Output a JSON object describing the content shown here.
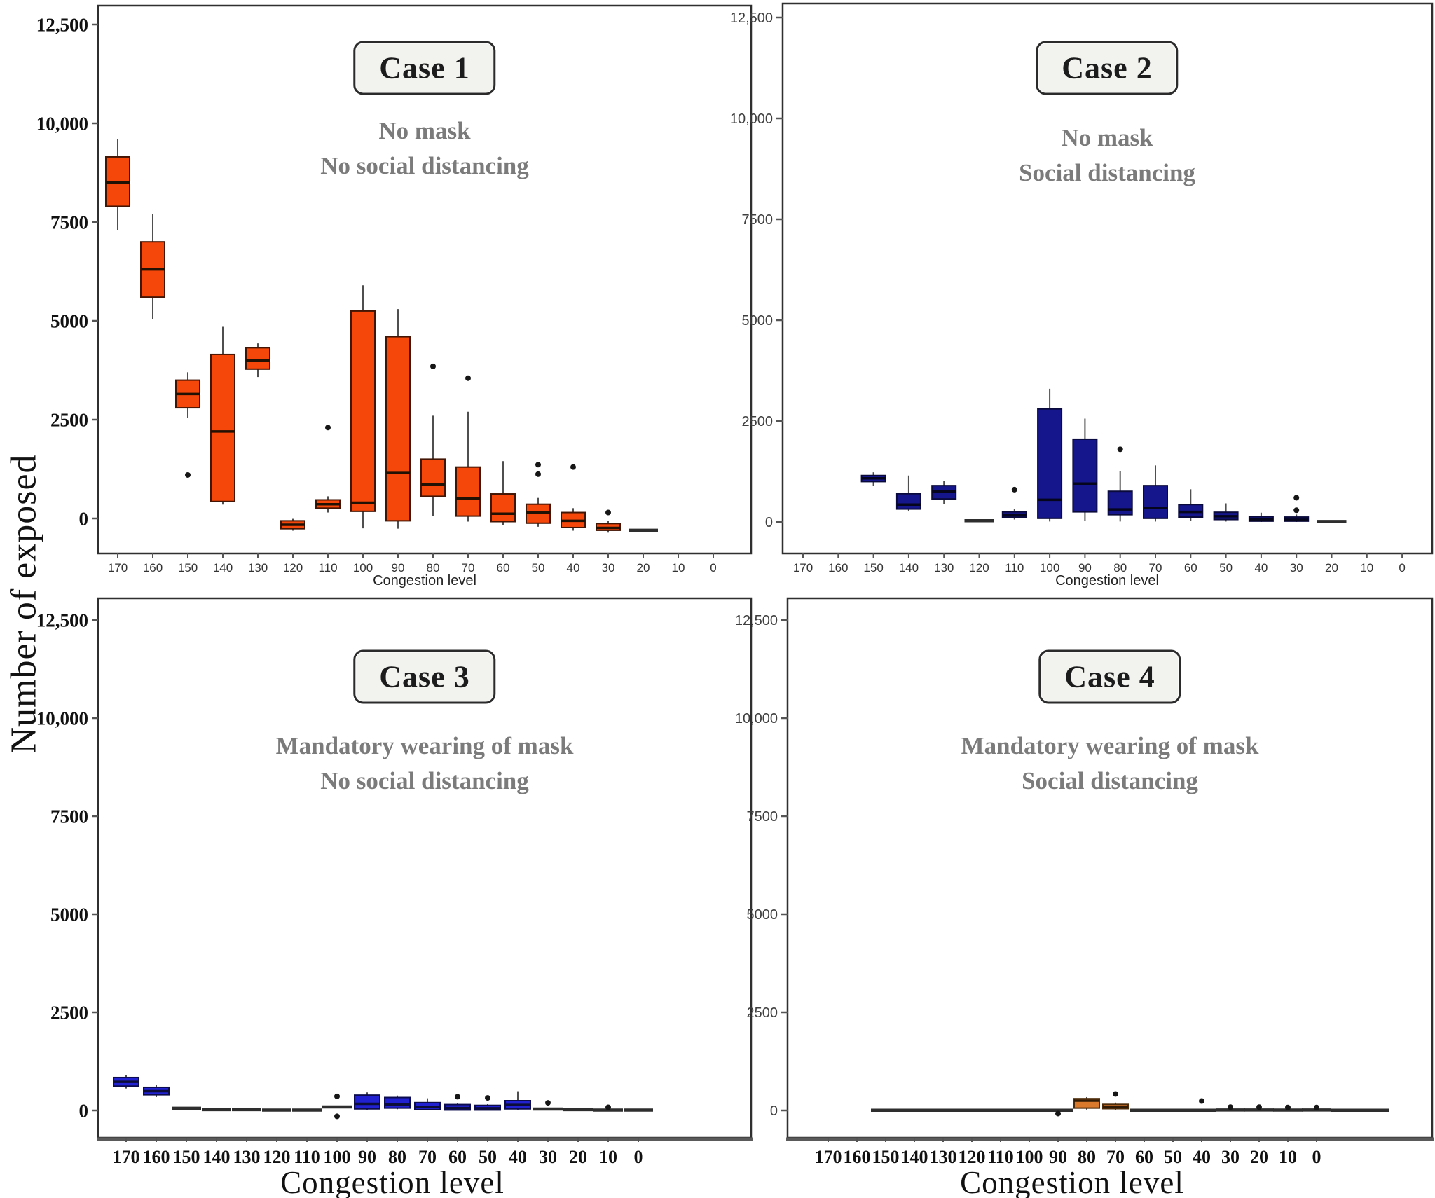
{
  "figure": {
    "y_axis_label": "Number of exposed",
    "background": "#ffffff"
  },
  "chart_data": [
    {
      "type": "boxplot",
      "case_label": "Case 1",
      "subtitle_lines": [
        "No mask",
        "No social distancing"
      ],
      "xlabel": "Congestion level",
      "box_fill": "#F5470A",
      "box_stroke": "#431504",
      "median_color": "#211004",
      "legend_position": "none",
      "grid": false,
      "ylim": [
        -900,
        12500
      ],
      "yticks": [
        {
          "v": 0,
          "label": "0"
        },
        {
          "v": 2500,
          "label": "2500"
        },
        {
          "v": 5000,
          "label": "5000"
        },
        {
          "v": 7500,
          "label": "7500"
        },
        {
          "v": 10000,
          "label": "10,000"
        },
        {
          "v": 12500,
          "label": "12,500"
        }
      ],
      "categories": [
        "170",
        "160",
        "150",
        "140",
        "130",
        "120",
        "110",
        "100",
        "90",
        "80",
        "70",
        "60",
        "50",
        "40",
        "30",
        "20",
        "10",
        "0"
      ],
      "boxes": [
        {
          "cat": "170",
          "low": 7300,
          "q1": 7900,
          "med": 8500,
          "q3": 9150,
          "high": 9600,
          "out": []
        },
        {
          "cat": "160",
          "low": 5050,
          "q1": 5600,
          "med": 6300,
          "q3": 7000,
          "high": 7700,
          "out": []
        },
        {
          "cat": "150",
          "low": 2550,
          "q1": 2800,
          "med": 3150,
          "q3": 3500,
          "high": 3700,
          "out": [
            1100
          ]
        },
        {
          "cat": "140",
          "low": 350,
          "q1": 430,
          "med": 2200,
          "q3": 4150,
          "high": 4850,
          "out": []
        },
        {
          "cat": "130",
          "low": 3580,
          "q1": 3780,
          "med": 4000,
          "q3": 4320,
          "high": 4430,
          "out": []
        },
        {
          "cat": "120",
          "low": -310,
          "q1": -260,
          "med": -160,
          "q3": -60,
          "high": -10,
          "out": []
        },
        {
          "cat": "110",
          "low": 150,
          "q1": 260,
          "med": 360,
          "q3": 470,
          "high": 560,
          "out": [
            2300
          ]
        },
        {
          "cat": "100",
          "low": -250,
          "q1": 180,
          "med": 400,
          "q3": 5250,
          "high": 5900,
          "out": []
        },
        {
          "cat": "90",
          "low": -260,
          "q1": -60,
          "med": 1150,
          "q3": 4600,
          "high": 5300,
          "out": []
        },
        {
          "cat": "80",
          "low": 60,
          "q1": 560,
          "med": 860,
          "q3": 1500,
          "high": 2600,
          "out": [
            3850
          ]
        },
        {
          "cat": "70",
          "low": -80,
          "q1": 60,
          "med": 500,
          "q3": 1300,
          "high": 2700,
          "out": [
            3550
          ]
        },
        {
          "cat": "60",
          "low": -160,
          "q1": -80,
          "med": 120,
          "q3": 620,
          "high": 1450,
          "out": []
        },
        {
          "cat": "50",
          "low": -210,
          "q1": -120,
          "med": 150,
          "q3": 360,
          "high": 520,
          "out": [
            1120,
            1360
          ]
        },
        {
          "cat": "40",
          "low": -310,
          "q1": -230,
          "med": -60,
          "q3": 150,
          "high": 260,
          "out": [
            1300
          ]
        },
        {
          "cat": "30",
          "low": -360,
          "q1": -300,
          "med": -240,
          "q3": -130,
          "high": -60,
          "out": [
            150
          ]
        },
        {
          "cat": "20",
          "flat": -300,
          "out": []
        },
        null,
        null
      ]
    },
    {
      "type": "boxplot",
      "case_label": "Case 2",
      "subtitle_lines": [
        "No mask",
        "Social distancing"
      ],
      "xlabel": "Congestion level",
      "box_fill": "#16168C",
      "box_stroke": "#0a0a3c",
      "median_color": "#05051e",
      "legend_position": "none",
      "grid": false,
      "ylim": [
        -900,
        12500
      ],
      "yticks": [
        {
          "v": 0,
          "label": "0"
        },
        {
          "v": 2500,
          "label": "2500"
        },
        {
          "v": 5000,
          "label": "5000"
        },
        {
          "v": 7500,
          "label": "7500"
        },
        {
          "v": 10000,
          "label": "10,000"
        },
        {
          "v": 12500,
          "label": "12,500"
        }
      ],
      "categories": [
        "170",
        "160",
        "150",
        "140",
        "130",
        "120",
        "110",
        "100",
        "90",
        "80",
        "70",
        "60",
        "50",
        "40",
        "30",
        "20",
        "10",
        "0"
      ],
      "boxes": [
        null,
        null,
        {
          "cat": "150",
          "low": 900,
          "q1": 1000,
          "med": 1080,
          "q3": 1150,
          "high": 1230,
          "out": []
        },
        {
          "cat": "140",
          "low": 260,
          "q1": 320,
          "med": 430,
          "q3": 700,
          "high": 1150,
          "out": []
        },
        {
          "cat": "130",
          "low": 450,
          "q1": 570,
          "med": 760,
          "q3": 900,
          "high": 1010,
          "out": []
        },
        {
          "cat": "120",
          "flat": 30,
          "out": []
        },
        {
          "cat": "110",
          "low": 60,
          "q1": 120,
          "med": 180,
          "q3": 250,
          "high": 320,
          "out": [
            800
          ]
        },
        {
          "cat": "100",
          "low": 10,
          "q1": 90,
          "med": 550,
          "q3": 2800,
          "high": 3300,
          "out": []
        },
        {
          "cat": "90",
          "low": 30,
          "q1": 250,
          "med": 950,
          "q3": 2050,
          "high": 2560,
          "out": []
        },
        {
          "cat": "80",
          "low": 10,
          "q1": 180,
          "med": 310,
          "q3": 760,
          "high": 1260,
          "out": [
            1800
          ]
        },
        {
          "cat": "70",
          "low": 10,
          "q1": 90,
          "med": 350,
          "q3": 900,
          "high": 1400,
          "out": []
        },
        {
          "cat": "60",
          "low": 20,
          "q1": 120,
          "med": 250,
          "q3": 430,
          "high": 810,
          "out": []
        },
        {
          "cat": "50",
          "low": 10,
          "q1": 60,
          "med": 140,
          "q3": 240,
          "high": 460,
          "out": []
        },
        {
          "cat": "40",
          "low": 0,
          "q1": 20,
          "med": 60,
          "q3": 130,
          "high": 230,
          "out": []
        },
        {
          "cat": "30",
          "low": 0,
          "q1": 20,
          "med": 55,
          "q3": 120,
          "high": 185,
          "out": [
            290,
            600
          ]
        },
        {
          "cat": "20",
          "flat": 10,
          "out": []
        },
        null,
        null
      ]
    },
    {
      "type": "boxplot",
      "case_label": "Case 3",
      "subtitle_lines": [
        "Mandatory wearing of mask",
        "No social distancing"
      ],
      "xlabel": "Congestion level",
      "box_fill": "#2121D1",
      "box_stroke": "#0c0c4f",
      "median_color": "#0d0d3a",
      "legend_position": "none",
      "grid": false,
      "ylim": [
        -900,
        12500
      ],
      "yticks": [
        {
          "v": 0,
          "label": "0"
        },
        {
          "v": 2500,
          "label": "2500"
        },
        {
          "v": 5000,
          "label": "5000"
        },
        {
          "v": 7500,
          "label": "7500"
        },
        {
          "v": 10000,
          "label": "10,000"
        },
        {
          "v": 12500,
          "label": "12,500"
        }
      ],
      "categories": [
        "170",
        "160",
        "150",
        "140",
        "130",
        "120",
        "110",
        "100",
        "90",
        "80",
        "70",
        "60",
        "50",
        "40",
        "30",
        "20",
        "10",
        "0"
      ],
      "boxes": [
        {
          "cat": "170",
          "low": 560,
          "q1": 620,
          "med": 730,
          "q3": 840,
          "high": 900,
          "out": []
        },
        {
          "cat": "160",
          "low": 340,
          "q1": 400,
          "med": 490,
          "q3": 590,
          "high": 660,
          "out": []
        },
        {
          "cat": "150",
          "flat": 55,
          "out": []
        },
        {
          "cat": "140",
          "flat": 20,
          "out": []
        },
        {
          "cat": "130",
          "flat": 20,
          "out": []
        },
        {
          "cat": "120",
          "flat": 8,
          "out": []
        },
        {
          "cat": "110",
          "flat": 8,
          "out": []
        },
        {
          "cat": "100",
          "flat": 90,
          "out": [
            360,
            -150
          ]
        },
        {
          "cat": "90",
          "low": 10,
          "q1": 40,
          "med": 170,
          "q3": 390,
          "high": 460,
          "out": []
        },
        {
          "cat": "80",
          "low": 30,
          "q1": 60,
          "med": 150,
          "q3": 330,
          "high": 380,
          "out": []
        },
        {
          "cat": "70",
          "low": 5,
          "q1": 20,
          "med": 90,
          "q3": 200,
          "high": 310,
          "out": []
        },
        {
          "cat": "60",
          "low": 0,
          "q1": 10,
          "med": 60,
          "q3": 150,
          "high": 190,
          "out": [
            350
          ]
        },
        {
          "cat": "50",
          "low": 0,
          "q1": 10,
          "med": 55,
          "q3": 130,
          "high": 160,
          "out": [
            320
          ]
        },
        {
          "cat": "40",
          "low": 10,
          "q1": 40,
          "med": 140,
          "q3": 250,
          "high": 490,
          "out": []
        },
        {
          "cat": "30",
          "flat": 35,
          "out": [
            195
          ]
        },
        {
          "cat": "20",
          "flat": 20,
          "out": []
        },
        {
          "cat": "10",
          "flat": 8,
          "out": [
            80
          ]
        },
        {
          "cat": "0",
          "flat": 10,
          "out": []
        }
      ]
    },
    {
      "type": "boxplot",
      "case_label": "Case 4",
      "subtitle_lines": [
        "Mandatory wearing of mask",
        "Social distancing"
      ],
      "xlabel": "Congestion level",
      "box_fill": "#D8792B",
      "box_stroke": "#4d2a08",
      "median_color": "#2e1a05",
      "legend_position": "none",
      "grid": false,
      "ylim": [
        -900,
        12500
      ],
      "yticks": [
        {
          "v": 0,
          "label": "0"
        },
        {
          "v": 2500,
          "label": "2500"
        },
        {
          "v": 5000,
          "label": "5000"
        },
        {
          "v": 7500,
          "label": "7500"
        },
        {
          "v": 10000,
          "label": "10,000"
        },
        {
          "v": 12500,
          "label": "12,500"
        }
      ],
      "categories": [
        "170",
        "160",
        "150",
        "140",
        "130",
        "120",
        "110",
        "100",
        "90",
        "80",
        "70",
        "60",
        "50",
        "40",
        "30",
        "20",
        "10",
        "0"
      ],
      "boxes": [
        null,
        null,
        {
          "cat": "150",
          "flat": 5,
          "out": []
        },
        {
          "cat": "140",
          "flat": 5,
          "out": []
        },
        {
          "cat": "130",
          "flat": 5,
          "out": []
        },
        {
          "cat": "120",
          "flat": 5,
          "out": []
        },
        {
          "cat": "110",
          "flat": 5,
          "out": []
        },
        {
          "cat": "100",
          "flat": 5,
          "out": []
        },
        {
          "cat": "90",
          "flat": 5,
          "out": [
            -80
          ]
        },
        {
          "cat": "80",
          "low": 20,
          "q1": 60,
          "med": 250,
          "q3": 300,
          "high": 340,
          "out": []
        },
        {
          "cat": "70",
          "low": 10,
          "q1": 45,
          "med": 90,
          "q3": 155,
          "high": 200,
          "out": [
            420
          ]
        },
        {
          "cat": "60",
          "flat": 5,
          "out": []
        },
        {
          "cat": "50",
          "flat": 5,
          "out": []
        },
        {
          "cat": "40",
          "flat": 5,
          "out": [
            240
          ]
        },
        {
          "cat": "30",
          "flat": 12,
          "out": [
            85
          ]
        },
        {
          "cat": "20",
          "flat": 12,
          "out": [
            85
          ]
        },
        {
          "cat": "10",
          "flat": 10,
          "out": [
            75
          ]
        },
        {
          "cat": "0",
          "flat": 12,
          "out": [
            75
          ]
        }
      ],
      "trailing_flat_lines": [
        5,
        5
      ]
    }
  ]
}
